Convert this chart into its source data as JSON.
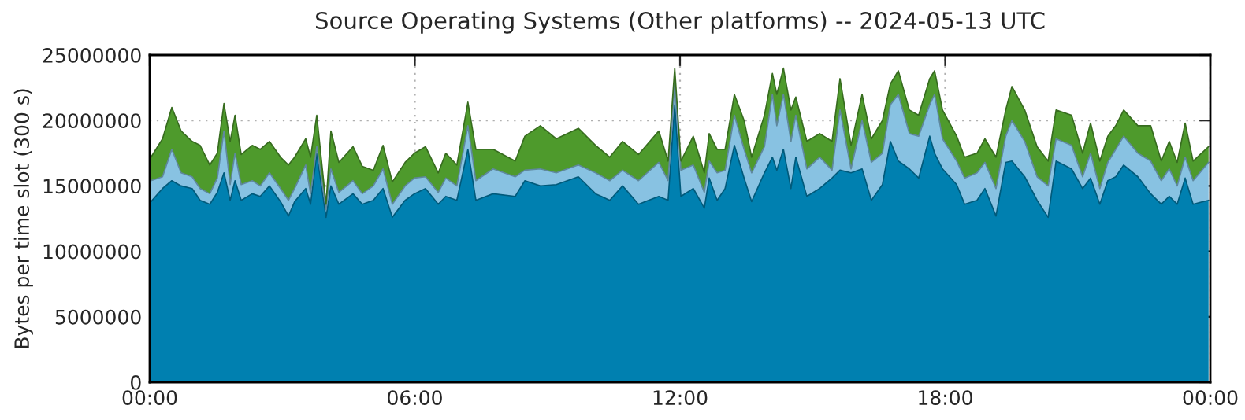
{
  "chart_data": {
    "type": "area",
    "stacked": true,
    "title": "Source Operating Systems (Other platforms) -- 2024-05-13 UTC",
    "ylabel": "Bytes per time slot (300 s)",
    "x": [
      0.03,
      0.29,
      0.5,
      0.71,
      0.96,
      1.14,
      1.36,
      1.53,
      1.68,
      1.82,
      1.93,
      2.07,
      2.32,
      2.5,
      2.71,
      2.96,
      3.14,
      3.28,
      3.53,
      3.64,
      3.78,
      3.99,
      4.1,
      4.28,
      4.6,
      4.81,
      5.06,
      5.28,
      5.49,
      5.78,
      5.99,
      6.24,
      6.53,
      6.7,
      6.95,
      7.2,
      7.38,
      7.77,
      8.27,
      8.49,
      8.84,
      9.2,
      9.7,
      10.09,
      10.41,
      10.7,
      11.06,
      11.52,
      11.73,
      11.88,
      12.02,
      12.3,
      12.55,
      12.66,
      12.84,
      13.02,
      13.23,
      13.45,
      13.62,
      13.91,
      14.09,
      14.19,
      14.34,
      14.51,
      14.62,
      14.87,
      15.16,
      15.44,
      15.62,
      15.87,
      16.12,
      16.33,
      16.58,
      16.76,
      16.94,
      17.19,
      17.4,
      17.65,
      17.76,
      17.94,
      18.26,
      18.44,
      18.72,
      18.9,
      19.15,
      19.37,
      19.51,
      19.8,
      20.08,
      20.33,
      20.51,
      20.86,
      21.11,
      21.29,
      21.5,
      21.68,
      21.86,
      22.04,
      22.36,
      22.65,
      22.89,
      23.07,
      23.25,
      23.43,
      23.61,
      23.96
    ],
    "series": [
      {
        "color": "#0080b0",
        "values": [
          13800000.0,
          14800000.0,
          15400000.0,
          15000000.0,
          14800000.0,
          13900000.0,
          13600000.0,
          14500000.0,
          16000000.0,
          13900000.0,
          15400000.0,
          13900000.0,
          14400000.0,
          14200000.0,
          15000000.0,
          13800000.0,
          12700000.0,
          13800000.0,
          14800000.0,
          13600000.0,
          17500000.0,
          12600000.0,
          15000000.0,
          13600000.0,
          14400000.0,
          13600000.0,
          13900000.0,
          14800000.0,
          12600000.0,
          13900000.0,
          14400000.0,
          14800000.0,
          13600000.0,
          14200000.0,
          13900000.0,
          17800000.0,
          13900000.0,
          14400000.0,
          14200000.0,
          15400000.0,
          15000000.0,
          15100000.0,
          15700000.0,
          14400000.0,
          13900000.0,
          15000000.0,
          13600000.0,
          14200000.0,
          13900000.0,
          21200000.0,
          14200000.0,
          14800000.0,
          13300000.0,
          15600000.0,
          13900000.0,
          14800000.0,
          18100000.0,
          15600000.0,
          13800000.0,
          16000000.0,
          17200000.0,
          16200000.0,
          17800000.0,
          14800000.0,
          17200000.0,
          14200000.0,
          14800000.0,
          15600000.0,
          16200000.0,
          16000000.0,
          16300000.0,
          13900000.0,
          15100000.0,
          18400000.0,
          16900000.0,
          16300000.0,
          15600000.0,
          18800000.0,
          17500000.0,
          16300000.0,
          15100000.0,
          13600000.0,
          13900000.0,
          14800000.0,
          12700000.0,
          16800000.0,
          16900000.0,
          15700000.0,
          13900000.0,
          12600000.0,
          16900000.0,
          16300000.0,
          14800000.0,
          15600000.0,
          13600000.0,
          15400000.0,
          15700000.0,
          16600000.0,
          15700000.0,
          14400000.0,
          13600000.0,
          14200000.0,
          13600000.0,
          15600000.0,
          13600000.0,
          13900000.0
        ]
      },
      {
        "color": "#88c2e2",
        "values": [
          1600000.0,
          900000.0,
          2400000.0,
          1000000.0,
          900000.0,
          900000.0,
          800000.0,
          1100000.0,
          3200000.0,
          1200000.0,
          2100000.0,
          1200000.0,
          1000000.0,
          800000.0,
          1000000.0,
          1000000.0,
          1200000.0,
          1000000.0,
          1800000.0,
          800000.0,
          500000.0,
          600000.0,
          1300000.0,
          900000.0,
          1000000.0,
          800000.0,
          1100000.0,
          1500000.0,
          1000000.0,
          1100000.0,
          1200000.0,
          900000.0,
          900000.0,
          1400000.0,
          1100000.0,
          1800000.0,
          1500000.0,
          1900000.0,
          1500000.0,
          800000.0,
          1300000.0,
          900000.0,
          900000.0,
          1600000.0,
          1500000.0,
          1200000.0,
          1800000.0,
          2600000.0,
          1500000.0,
          1600000.0,
          2000000.0,
          1800000.0,
          1200000.0,
          1300000.0,
          2100000.0,
          1400000.0,
          2300000.0,
          2200000.0,
          2200000.0,
          2000000.0,
          4800000.0,
          3400000.0,
          4200000.0,
          3600000.0,
          3200000.0,
          2100000.0,
          2400000.0,
          600000.0,
          4600000.0,
          300000.0,
          3700000.0,
          2900000.0,
          2400000.0,
          2800000.0,
          5100000.0,
          2700000.0,
          3200000.0,
          2400000.0,
          4500000.0,
          2300000.0,
          1800000.0,
          2000000.0,
          2100000.0,
          2000000.0,
          2100000.0,
          2000000.0,
          3100000.0,
          2700000.0,
          1800000.0,
          2400000.0,
          1700000.0,
          1800000.0,
          900000.0,
          1900000.0,
          1200000.0,
          1400000.0,
          2100000.0,
          2200000.0,
          1800000.0,
          2500000.0,
          1800000.0,
          2100000.0,
          1400000.0,
          1600000.0,
          1800000.0,
          2900000.0
        ]
      },
      {
        "color": "#4e9a2c",
        "values": [
          1800000.0,
          2900000.0,
          3200000.0,
          3200000.0,
          2700000.0,
          3300000.0,
          2200000.0,
          1900000.0,
          2100000.0,
          3300000.0,
          2900000.0,
          2300000.0,
          2700000.0,
          2800000.0,
          2400000.0,
          2400000.0,
          2700000.0,
          2400000.0,
          2000000.0,
          2800000.0,
          2400000.0,
          400000.0,
          2900000.0,
          2300000.0,
          2600000.0,
          2100000.0,
          1200000.0,
          1800000.0,
          1700000.0,
          1800000.0,
          1900000.0,
          2300000.0,
          1500000.0,
          1900000.0,
          1600000.0,
          1800000.0,
          2400000.0,
          1500000.0,
          1200000.0,
          2600000.0,
          3300000.0,
          2600000.0,
          2800000.0,
          2100000.0,
          1800000.0,
          2200000.0,
          2000000.0,
          2400000.0,
          1500000.0,
          1200000.0,
          700000.0,
          2200000.0,
          1500000.0,
          2100000.0,
          1800000.0,
          1600000.0,
          1600000.0,
          2200000.0,
          1200000.0,
          2400000.0,
          1600000.0,
          2400000.0,
          2000000.0,
          2400000.0,
          1400000.0,
          2100000.0,
          1800000.0,
          2200000.0,
          2400000.0,
          1800000.0,
          2000000.0,
          1800000.0,
          2500000.0,
          1600000.0,
          1800000.0,
          1800000.0,
          1600000.0,
          2000000.0,
          1800000.0,
          2200000.0,
          1900000.0,
          1600000.0,
          1500000.0,
          1800000.0,
          2400000.0,
          2000000.0,
          2600000.0,
          2400000.0,
          2300000.0,
          1900000.0,
          2200000.0,
          2300000.0,
          1800000.0,
          2300000.0,
          2100000.0,
          2000000.0,
          1800000.0,
          2000000.0,
          2100000.0,
          2700000.0,
          1500000.0,
          2100000.0,
          1800000.0,
          2600000.0,
          1500000.0,
          1200000.0
        ]
      }
    ],
    "xlim": [
      0,
      24
    ],
    "xticks": [
      {
        "value": 0,
        "label": "00:00"
      },
      {
        "value": 6,
        "label": "06:00"
      },
      {
        "value": 12,
        "label": "12:00"
      },
      {
        "value": 18,
        "label": "18:00"
      },
      {
        "value": 24,
        "label": "00:00"
      }
    ],
    "ylim": [
      0,
      25000000
    ],
    "yticks": [
      0,
      5000000,
      10000000,
      15000000,
      20000000,
      25000000
    ],
    "grid": true
  }
}
